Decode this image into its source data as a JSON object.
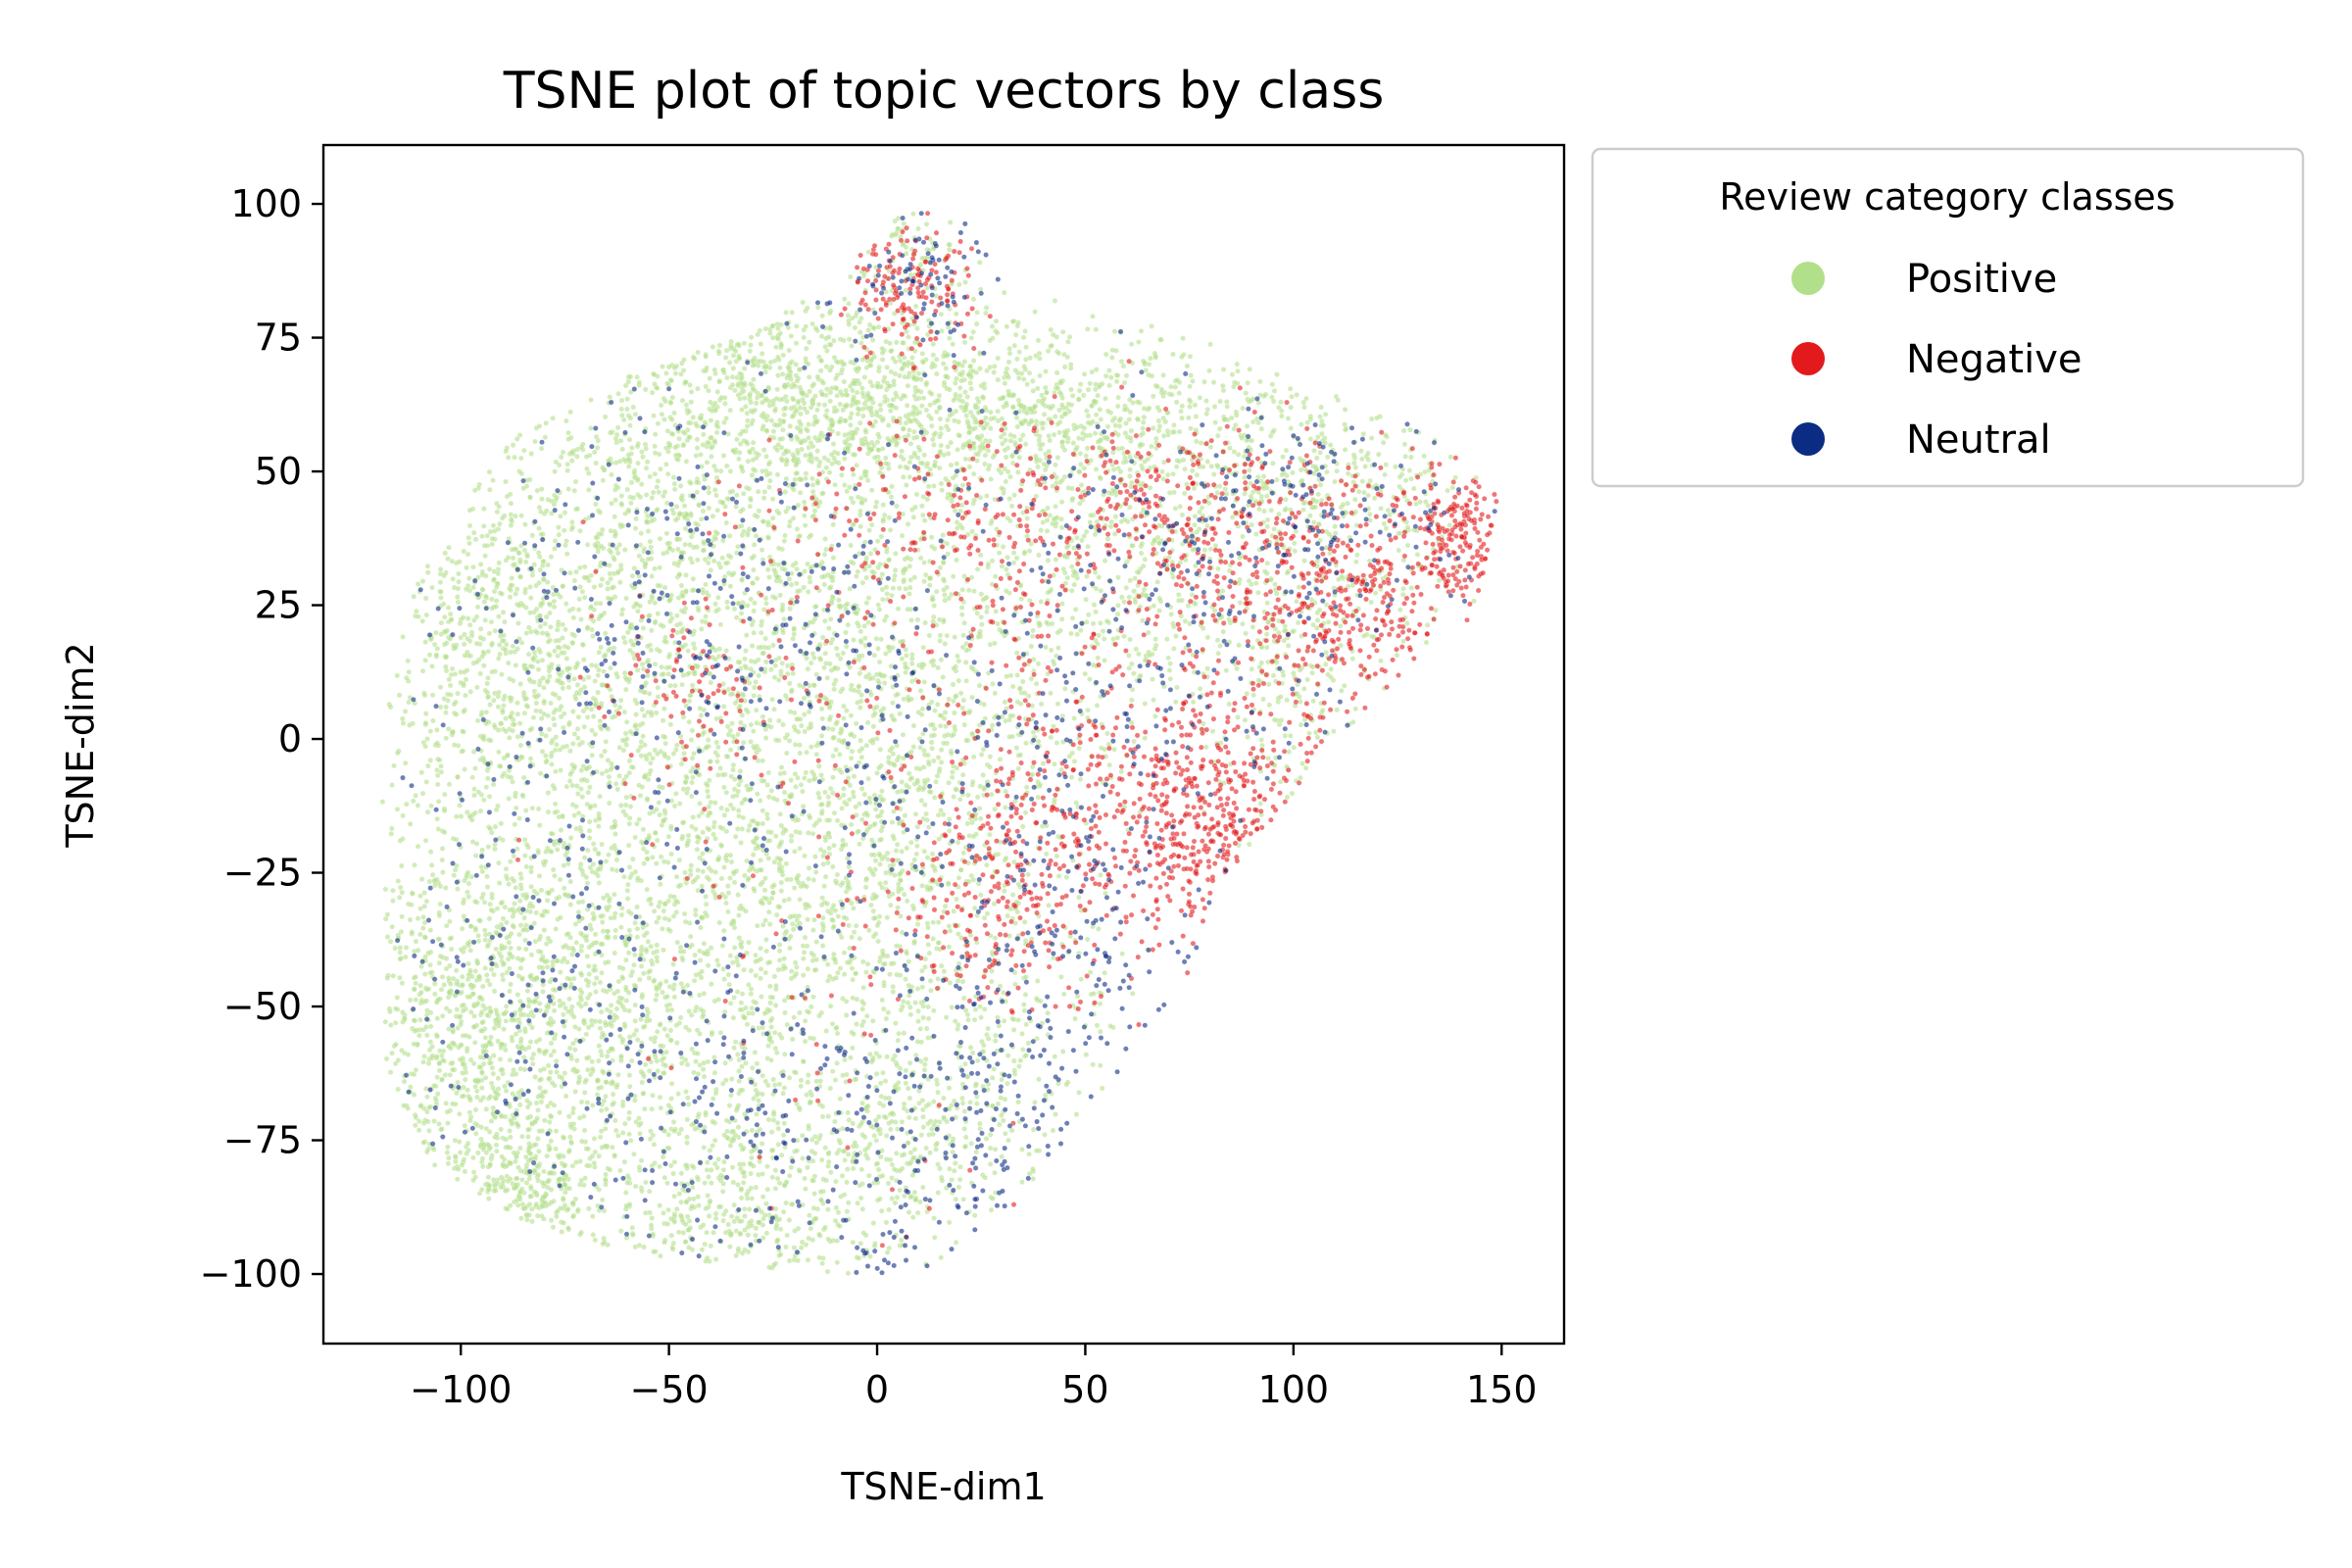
{
  "chart_data": {
    "type": "scatter",
    "title": "TSNE plot of topic vectors by class",
    "xlabel": "TSNE-dim1",
    "ylabel": "TSNE-dim2",
    "xlim": [
      -133,
      165
    ],
    "ylim": [
      -113,
      111
    ],
    "xticks": [
      -100,
      -50,
      0,
      50,
      100,
      150
    ],
    "yticks": [
      100,
      75,
      50,
      25,
      0,
      -25,
      -50,
      -75,
      -100
    ],
    "xtick_labels": [
      "−100",
      "−50",
      "0",
      "50",
      "100",
      "150"
    ],
    "ytick_labels": [
      "100",
      "75",
      "50",
      "25",
      "0",
      "−25",
      "−50",
      "−75",
      "−100"
    ],
    "grid": false,
    "legend": {
      "title": "Review category classes",
      "placement": "outside-upper-right",
      "entries": [
        "Positive",
        "Negative",
        "Neutral"
      ]
    },
    "series": [
      {
        "name": "Positive",
        "color": "#b2df8a",
        "approx_point_count": 9000,
        "clusters": [
          {
            "cx": -95,
            "cy": 15,
            "sx": 15,
            "sy": 18,
            "n": 500
          },
          {
            "cx": -100,
            "cy": -55,
            "sx": 14,
            "sy": 18,
            "n": 650
          },
          {
            "cx": -75,
            "cy": -35,
            "sx": 18,
            "sy": 25,
            "n": 700
          },
          {
            "cx": -50,
            "cy": -60,
            "sx": 22,
            "sy": 18,
            "n": 600
          },
          {
            "cx": -70,
            "cy": 25,
            "sx": 20,
            "sy": 20,
            "n": 500
          },
          {
            "cx": -40,
            "cy": 50,
            "sx": 22,
            "sy": 15,
            "n": 600
          },
          {
            "cx": -35,
            "cy": -5,
            "sx": 22,
            "sy": 22,
            "n": 700
          },
          {
            "cx": -15,
            "cy": 65,
            "sx": 22,
            "sy": 10,
            "n": 550
          },
          {
            "cx": 15,
            "cy": 60,
            "sx": 22,
            "sy": 10,
            "n": 500
          },
          {
            "cx": 0,
            "cy": 25,
            "sx": 22,
            "sy": 15,
            "n": 500
          },
          {
            "cx": -10,
            "cy": -25,
            "sx": 22,
            "sy": 18,
            "n": 600
          },
          {
            "cx": -10,
            "cy": -80,
            "sx": 22,
            "sy": 12,
            "n": 400
          },
          {
            "cx": 20,
            "cy": -60,
            "sx": 20,
            "sy": 18,
            "n": 400
          },
          {
            "cx": 45,
            "cy": 60,
            "sx": 18,
            "sy": 10,
            "n": 350
          },
          {
            "cx": 80,
            "cy": 55,
            "sx": 20,
            "sy": 12,
            "n": 350
          },
          {
            "cx": 115,
            "cy": 45,
            "sx": 18,
            "sy": 12,
            "n": 300
          },
          {
            "cx": 20,
            "cy": -5,
            "sx": 18,
            "sy": 15,
            "n": 400
          },
          {
            "cx": 60,
            "cy": 25,
            "sx": 18,
            "sy": 12,
            "n": 300
          },
          {
            "cx": 100,
            "cy": 10,
            "sx": 12,
            "sy": 12,
            "n": 200
          },
          {
            "cx": -85,
            "cy": -85,
            "sx": 10,
            "sy": 8,
            "n": 250
          },
          {
            "cx": -40,
            "cy": -90,
            "sx": 12,
            "sy": 6,
            "n": 150
          },
          {
            "cx": 10,
            "cy": 92,
            "sx": 8,
            "sy": 5,
            "n": 60
          }
        ]
      },
      {
        "name": "Negative",
        "color": "#e31a1c",
        "approx_point_count": 2200,
        "clusters": [
          {
            "cx": 8,
            "cy": 85,
            "sx": 8,
            "sy": 6,
            "n": 150
          },
          {
            "cx": 80,
            "cy": -15,
            "sx": 13,
            "sy": 12,
            "n": 420
          },
          {
            "cx": 115,
            "cy": 25,
            "sx": 10,
            "sy": 10,
            "n": 230
          },
          {
            "cx": 140,
            "cy": 38,
            "sx": 7,
            "sy": 8,
            "n": 200
          },
          {
            "cx": 70,
            "cy": 45,
            "sx": 18,
            "sy": 8,
            "n": 180
          },
          {
            "cx": 40,
            "cy": -15,
            "sx": 15,
            "sy": 12,
            "n": 200
          },
          {
            "cx": 95,
            "cy": 30,
            "sx": 15,
            "sy": 12,
            "n": 200
          },
          {
            "cx": 15,
            "cy": 40,
            "sx": 25,
            "sy": 8,
            "n": 150
          },
          {
            "cx": 50,
            "cy": 20,
            "sx": 25,
            "sy": 20,
            "n": 200
          },
          {
            "cx": 30,
            "cy": -35,
            "sx": 12,
            "sy": 8,
            "n": 120
          },
          {
            "cx": -40,
            "cy": 8,
            "sx": 15,
            "sy": 10,
            "n": 100
          },
          {
            "cx": 0,
            "cy": -20,
            "sx": 35,
            "sy": 40,
            "n": 150
          }
        ]
      },
      {
        "name": "Neutral",
        "color": "#0c2c84",
        "approx_point_count": 1600,
        "clusters": [
          {
            "cx": 10,
            "cy": 85,
            "sx": 10,
            "sy": 6,
            "n": 80
          },
          {
            "cx": 40,
            "cy": -40,
            "sx": 20,
            "sy": 20,
            "n": 220
          },
          {
            "cx": -10,
            "cy": 20,
            "sx": 30,
            "sy": 25,
            "n": 250
          },
          {
            "cx": 100,
            "cy": 40,
            "sx": 25,
            "sy": 12,
            "n": 200
          },
          {
            "cx": -75,
            "cy": -40,
            "sx": 25,
            "sy": 30,
            "n": 220
          },
          {
            "cx": 20,
            "cy": -80,
            "sx": 20,
            "sy": 15,
            "n": 150
          },
          {
            "cx": -30,
            "cy": -70,
            "sx": 20,
            "sy": 20,
            "n": 150
          },
          {
            "cx": 60,
            "cy": 10,
            "sx": 25,
            "sy": 25,
            "n": 200
          },
          {
            "cx": -60,
            "cy": 30,
            "sx": 25,
            "sy": 20,
            "n": 130
          }
        ]
      }
    ]
  }
}
